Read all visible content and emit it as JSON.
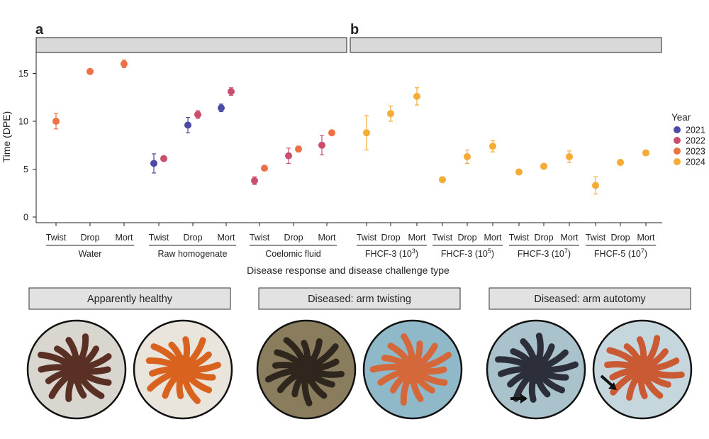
{
  "chart_data": [
    {
      "type": "scatter",
      "panel": "a",
      "title": "",
      "xlabel": "Disease response and disease challenge type",
      "ylabel": "Time (DPE)",
      "ylim": [
        -0.5,
        18
      ],
      "yticks": [
        "0",
        "5",
        "10",
        "15"
      ],
      "grid": false,
      "groups": [
        {
          "name": "Water",
          "categories": [
            "Twist",
            "Drop",
            "Mort"
          ],
          "points": [
            {
              "category": "Twist",
              "year": "2023",
              "y": 10.0,
              "err": 0.8
            },
            {
              "category": "Drop",
              "year": "2023",
              "y": 15.2,
              "err": 0.1
            },
            {
              "category": "Mort",
              "year": "2023",
              "y": 16.0,
              "err": 0.4
            }
          ]
        },
        {
          "name": "Raw homogenate",
          "categories": [
            "Twist",
            "Drop",
            "Mort"
          ],
          "points": [
            {
              "category": "Twist",
              "year": "2021",
              "y": 5.6,
              "err": 1.0
            },
            {
              "category": "Twist",
              "year": "2022",
              "y": 6.1,
              "err": 0.2
            },
            {
              "category": "Drop",
              "year": "2021",
              "y": 9.6,
              "err": 0.8
            },
            {
              "category": "Drop",
              "year": "2022",
              "y": 10.7,
              "err": 0.4
            },
            {
              "category": "Mort",
              "year": "2021",
              "y": 11.4,
              "err": 0.4
            },
            {
              "category": "Mort",
              "year": "2022",
              "y": 13.1,
              "err": 0.4
            }
          ]
        },
        {
          "name": "Coelomic fluid",
          "categories": [
            "Twist",
            "Drop",
            "Mort"
          ],
          "points": [
            {
              "category": "Twist",
              "year": "2022",
              "y": 3.8,
              "err": 0.4
            },
            {
              "category": "Twist",
              "year": "2023",
              "y": 5.1,
              "err": 0.2
            },
            {
              "category": "Drop",
              "year": "2022",
              "y": 6.4,
              "err": 0.8
            },
            {
              "category": "Drop",
              "year": "2023",
              "y": 7.1,
              "err": 0.3
            },
            {
              "category": "Mort",
              "year": "2022",
              "y": 7.5,
              "err": 1.0
            },
            {
              "category": "Mort",
              "year": "2023",
              "y": 8.8,
              "err": 0.2
            }
          ]
        }
      ]
    },
    {
      "type": "scatter",
      "panel": "b",
      "title": "",
      "xlabel": "Disease response and disease challenge type",
      "ylabel": "Time (DPE)",
      "ylim": [
        -0.5,
        18
      ],
      "grid": false,
      "groups": [
        {
          "name": "FHCF-3 (10",
          "sup": "3",
          "categories": [
            "Twist",
            "Drop",
            "Mort"
          ],
          "points": [
            {
              "category": "Twist",
              "year": "2024",
              "y": 8.8,
              "err": 1.8
            },
            {
              "category": "Drop",
              "year": "2024",
              "y": 10.8,
              "err": 0.8
            },
            {
              "category": "Mort",
              "year": "2024",
              "y": 12.6,
              "err": 0.9
            }
          ]
        },
        {
          "name": "FHCF-3 (10",
          "sup": "5",
          "categories": [
            "Twist",
            "Drop",
            "Mort"
          ],
          "points": [
            {
              "category": "Twist",
              "year": "2024",
              "y": 3.9,
              "err": 0.1
            },
            {
              "category": "Drop",
              "year": "2024",
              "y": 6.3,
              "err": 0.7
            },
            {
              "category": "Mort",
              "year": "2024",
              "y": 7.4,
              "err": 0.6
            }
          ]
        },
        {
          "name": "FHCF-3 (10",
          "sup": "7",
          "categories": [
            "Twist",
            "Drop",
            "Mort"
          ],
          "points": [
            {
              "category": "Twist",
              "year": "2024",
              "y": 4.7,
              "err": 0.1
            },
            {
              "category": "Drop",
              "year": "2024",
              "y": 5.3,
              "err": 0.1
            },
            {
              "category": "Mort",
              "year": "2024",
              "y": 6.3,
              "err": 0.6
            }
          ]
        },
        {
          "name": "FHCF-5 (10",
          "sup": "7",
          "categories": [
            "Twist",
            "Drop",
            "Mort"
          ],
          "points": [
            {
              "category": "Twist",
              "year": "2024",
              "y": 3.3,
              "err": 0.9
            },
            {
              "category": "Drop",
              "year": "2024",
              "y": 5.7,
              "err": 0.1
            },
            {
              "category": "Mort",
              "year": "2024",
              "y": 6.7,
              "err": 0.1
            }
          ]
        }
      ]
    }
  ],
  "legend": {
    "title": "Year",
    "placement": "right",
    "entries": [
      {
        "label": "2021",
        "color": "#4b4ba6"
      },
      {
        "label": "2022",
        "color": "#c94f6d"
      },
      {
        "label": "2023",
        "color": "#ee7046"
      },
      {
        "label": "2024",
        "color": "#f5ab35"
      }
    ]
  },
  "panel_labels": {
    "a": "a",
    "b": "b"
  },
  "photo_sections": [
    {
      "caption": "Apparently healthy",
      "photos": [
        "healthy-star-dark",
        "healthy-star-orange"
      ]
    },
    {
      "caption": "Diseased: arm twisting",
      "photos": [
        "twisting-star-dark",
        "twisting-star-orange"
      ]
    },
    {
      "caption": "Diseased: arm autotomy",
      "photos": [
        "autotomy-star-dark",
        "autotomy-star-orange"
      ]
    }
  ]
}
